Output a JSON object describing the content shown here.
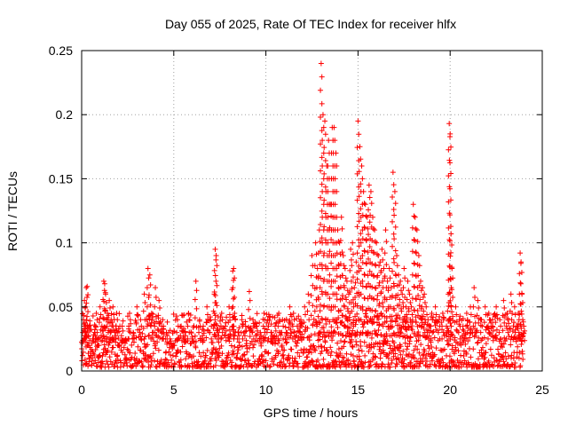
{
  "chart_data": {
    "type": "scatter",
    "title": "Day 055 of 2025, Rate Of TEC Index for receiver hlfx",
    "xlabel": "GPS time / hours",
    "ylabel": "ROTI / TECUs",
    "xlim": [
      0,
      25
    ],
    "ylim": [
      0,
      0.25
    ],
    "xticks": [
      0,
      5,
      10,
      15,
      20,
      25
    ],
    "xtick_labels": [
      "0",
      "5",
      "10",
      "15",
      "20",
      "25"
    ],
    "yticks": [
      0,
      0.05,
      0.1,
      0.15,
      0.2,
      0.25
    ],
    "ytick_labels": [
      "0",
      "0.05",
      "0.1",
      "0.15",
      "0.2",
      "0.25"
    ],
    "grid": true,
    "marker": "+",
    "series": [
      {
        "name": "ROTI",
        "color": "#ff0000",
        "x": [
          0.05,
          0.1,
          0.15,
          0.2,
          0.25,
          0.3,
          0.35,
          0.4,
          0.5,
          0.6,
          0.7,
          0.8,
          0.9,
          1.0,
          1.1,
          1.2,
          1.25,
          1.3,
          1.4,
          1.5,
          1.6,
          1.7,
          1.8,
          1.9,
          2.0,
          2.2,
          2.4,
          2.6,
          2.8,
          3.0,
          3.2,
          3.4,
          3.6,
          3.7,
          3.8,
          4.0,
          4.2,
          4.4,
          4.6,
          4.8,
          5.0,
          5.2,
          5.4,
          5.6,
          5.8,
          6.0,
          6.2,
          6.4,
          6.6,
          6.8,
          7.0,
          7.2,
          7.25,
          7.3,
          7.4,
          7.6,
          7.8,
          8.0,
          8.2,
          8.25,
          8.3,
          8.5,
          8.7,
          8.9,
          9.1,
          9.3,
          9.5,
          9.7,
          9.9,
          10.1,
          10.3,
          10.5,
          10.7,
          10.9,
          11.1,
          11.3,
          11.5,
          11.7,
          11.9,
          12.1,
          12.3,
          12.5,
          12.7,
          12.8,
          12.9,
          13.0,
          13.1,
          13.2,
          13.3,
          13.4,
          13.5,
          13.6,
          13.7,
          13.8,
          13.9,
          14.0,
          14.1,
          14.2,
          14.3,
          14.4,
          14.5,
          14.6,
          14.7,
          14.8,
          14.9,
          15.0,
          15.1,
          15.2,
          15.3,
          15.4,
          15.5,
          15.6,
          15.7,
          15.8,
          15.9,
          16.0,
          16.1,
          16.2,
          16.3,
          16.4,
          16.5,
          16.6,
          16.7,
          16.8,
          16.9,
          17.0,
          17.1,
          17.2,
          17.3,
          17.4,
          17.5,
          17.6,
          17.7,
          17.8,
          17.9,
          18.0,
          18.1,
          18.2,
          18.3,
          18.4,
          18.5,
          18.6,
          18.7,
          18.8,
          18.9,
          19.0,
          19.2,
          19.4,
          19.6,
          19.8,
          19.9,
          19.95,
          20.0,
          20.05,
          20.1,
          20.3,
          20.5,
          20.7,
          20.9,
          21.1,
          21.3,
          21.5,
          21.7,
          21.9,
          22.1,
          22.3,
          22.5,
          22.7,
          22.9,
          23.1,
          23.3,
          23.5,
          23.7,
          23.8,
          23.85,
          23.9,
          24.0
        ],
        "y": [
          0.012,
          0.04,
          0.055,
          0.03,
          0.065,
          0.066,
          0.02,
          0.035,
          0.015,
          0.025,
          0.03,
          0.045,
          0.02,
          0.05,
          0.035,
          0.07,
          0.068,
          0.06,
          0.045,
          0.055,
          0.04,
          0.05,
          0.03,
          0.045,
          0.02,
          0.035,
          0.025,
          0.045,
          0.03,
          0.05,
          0.04,
          0.06,
          0.08,
          0.075,
          0.045,
          0.065,
          0.055,
          0.04,
          0.03,
          0.025,
          0.02,
          0.04,
          0.035,
          0.03,
          0.045,
          0.025,
          0.07,
          0.04,
          0.035,
          0.05,
          0.04,
          0.06,
          0.095,
          0.09,
          0.03,
          0.045,
          0.035,
          0.05,
          0.078,
          0.08,
          0.045,
          0.03,
          0.04,
          0.035,
          0.062,
          0.04,
          0.035,
          0.03,
          0.045,
          0.04,
          0.03,
          0.035,
          0.045,
          0.04,
          0.03,
          0.05,
          0.045,
          0.035,
          0.04,
          0.05,
          0.06,
          0.09,
          0.1,
          0.08,
          0.11,
          0.24,
          0.2,
          0.195,
          0.16,
          0.18,
          0.13,
          0.19,
          0.19,
          0.17,
          0.11,
          0.1,
          0.12,
          0.09,
          0.08,
          0.07,
          0.06,
          0.095,
          0.1,
          0.065,
          0.085,
          0.195,
          0.175,
          0.16,
          0.14,
          0.13,
          0.12,
          0.145,
          0.14,
          0.12,
          0.11,
          0.1,
          0.09,
          0.085,
          0.095,
          0.08,
          0.11,
          0.07,
          0.08,
          0.065,
          0.155,
          0.14,
          0.09,
          0.075,
          0.07,
          0.06,
          0.08,
          0.05,
          0.07,
          0.06,
          0.05,
          0.13,
          0.12,
          0.11,
          0.09,
          0.07,
          0.065,
          0.06,
          0.05,
          0.04,
          0.035,
          0.045,
          0.05,
          0.04,
          0.045,
          0.035,
          0.06,
          0.193,
          0.185,
          0.107,
          0.08,
          0.05,
          0.04,
          0.035,
          0.045,
          0.05,
          0.065,
          0.055,
          0.04,
          0.05,
          0.045,
          0.035,
          0.05,
          0.04,
          0.055,
          0.045,
          0.06,
          0.05,
          0.045,
          0.092,
          0.085,
          0.06,
          0.035
        ],
        "baseline": {
          "description": "dense low-level band of points between ~0.003 and ~0.045 TECU covering 0-24 h",
          "x_start": 0,
          "x_end": 24,
          "y_min": 0.003,
          "y_max": 0.045
        }
      }
    ]
  }
}
